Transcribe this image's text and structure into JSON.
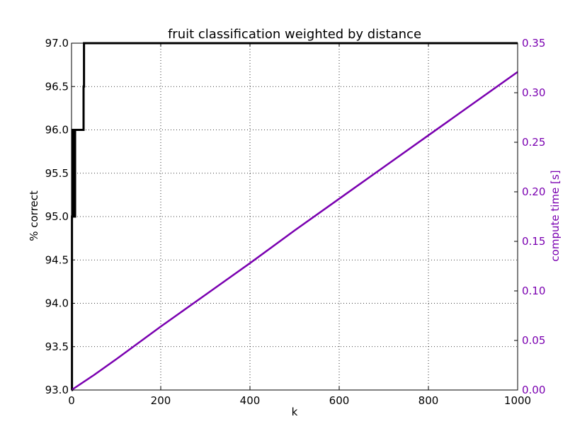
{
  "chart_data": {
    "type": "line",
    "title": "fruit classification weighted by distance",
    "xlabel": "k",
    "ylabel_left": "% correct",
    "ylabel_right": "compute time [s]",
    "xlim": [
      0,
      1000
    ],
    "ylim_left": [
      93.0,
      97.0
    ],
    "ylim_right": [
      0.0,
      0.35
    ],
    "x_ticks": [
      0,
      200,
      400,
      600,
      800,
      1000
    ],
    "y_left_ticks": [
      "93.0",
      "93.5",
      "94.0",
      "94.5",
      "95.0",
      "95.5",
      "96.0",
      "96.5",
      "97.0"
    ],
    "y_right_ticks": [
      "0.00",
      "0.05",
      "0.10",
      "0.15",
      "0.20",
      "0.25",
      "0.30",
      "0.35"
    ],
    "grid": true,
    "series": [
      {
        "axis": "left",
        "color": "#000000",
        "step": true,
        "x": [
          0,
          1,
          3,
          5,
          8,
          10,
          25,
          27,
          28,
          30,
          1000
        ],
        "y": [
          93.0,
          95.0,
          96.0,
          95.0,
          96.0,
          96.0,
          96.0,
          96.5,
          97.0,
          97.0,
          97.0
        ]
      },
      {
        "axis": "right",
        "color": "#7a00b0",
        "x": [
          0,
          50,
          100,
          200,
          300,
          400,
          500,
          600,
          700,
          800,
          900,
          1000
        ],
        "y": [
          0.0,
          0.015,
          0.031,
          0.064,
          0.096,
          0.128,
          0.161,
          0.193,
          0.225,
          0.257,
          0.289,
          0.321
        ]
      }
    ]
  }
}
